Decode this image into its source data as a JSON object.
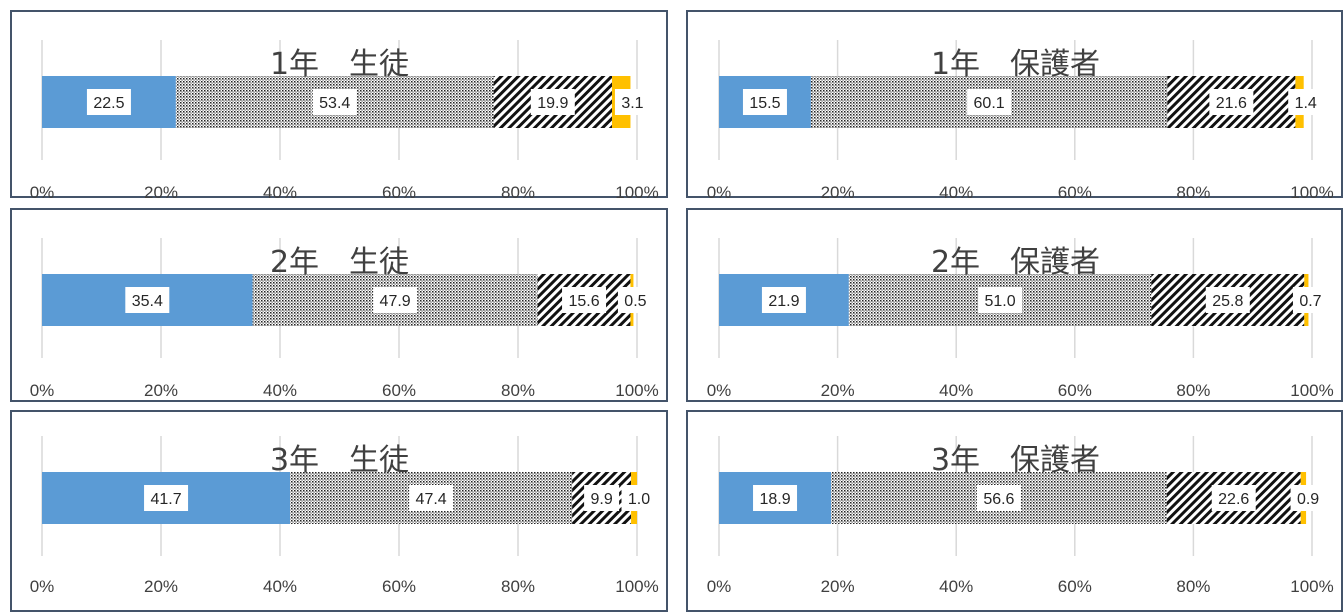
{
  "colors": {
    "seg1": "#5b9bd5",
    "seg2_pattern": "fine-dots",
    "seg3_pattern": "diagonal-stripes",
    "seg4": "#ffc000",
    "border": "#44546a",
    "grid": "#d9d9d9"
  },
  "chart_data": [
    {
      "type": "bar",
      "orientation": "horizontal-stacked-100",
      "title": "1年　生徒",
      "ticks": [
        "0%",
        "20%",
        "40%",
        "60%",
        "80%",
        "100%"
      ],
      "xlim": [
        0,
        100
      ],
      "grid": true,
      "values": [
        22.5,
        53.4,
        19.9,
        3.1
      ],
      "labels": [
        "22.5",
        "53.4",
        "19.9",
        "3.1"
      ]
    },
    {
      "type": "bar",
      "orientation": "horizontal-stacked-100",
      "title": "1年　保護者",
      "ticks": [
        "0%",
        "20%",
        "40%",
        "60%",
        "80%",
        "100%"
      ],
      "xlim": [
        0,
        100
      ],
      "grid": true,
      "values": [
        15.5,
        60.1,
        21.6,
        1.4
      ],
      "labels": [
        "15.5",
        "60.1",
        "21.6",
        "1.4"
      ]
    },
    {
      "type": "bar",
      "orientation": "horizontal-stacked-100",
      "title": "2年　生徒",
      "ticks": [
        "0%",
        "20%",
        "40%",
        "60%",
        "80%",
        "100%"
      ],
      "xlim": [
        0,
        100
      ],
      "grid": true,
      "values": [
        35.4,
        47.9,
        15.6,
        0.5
      ],
      "labels": [
        "35.4",
        "47.9",
        "15.6",
        "0.5"
      ]
    },
    {
      "type": "bar",
      "orientation": "horizontal-stacked-100",
      "title": "2年　保護者",
      "ticks": [
        "0%",
        "20%",
        "40%",
        "60%",
        "80%",
        "100%"
      ],
      "xlim": [
        0,
        100
      ],
      "grid": true,
      "values": [
        21.9,
        51.0,
        25.8,
        0.7
      ],
      "labels": [
        "21.9",
        "51.0",
        "25.8",
        "0.7"
      ]
    },
    {
      "type": "bar",
      "orientation": "horizontal-stacked-100",
      "title": "3年　生徒",
      "ticks": [
        "0%",
        "20%",
        "40%",
        "60%",
        "80%",
        "100%"
      ],
      "xlim": [
        0,
        100
      ],
      "grid": true,
      "values": [
        41.7,
        47.4,
        9.9,
        1.0
      ],
      "labels": [
        "41.7",
        "47.4",
        "9.9",
        "1.0"
      ]
    },
    {
      "type": "bar",
      "orientation": "horizontal-stacked-100",
      "title": "3年　保護者",
      "ticks": [
        "0%",
        "20%",
        "40%",
        "60%",
        "80%",
        "100%"
      ],
      "xlim": [
        0,
        100
      ],
      "grid": true,
      "values": [
        18.9,
        56.6,
        22.6,
        0.9
      ],
      "labels": [
        "18.9",
        "56.6",
        "22.6",
        "0.9"
      ]
    }
  ]
}
